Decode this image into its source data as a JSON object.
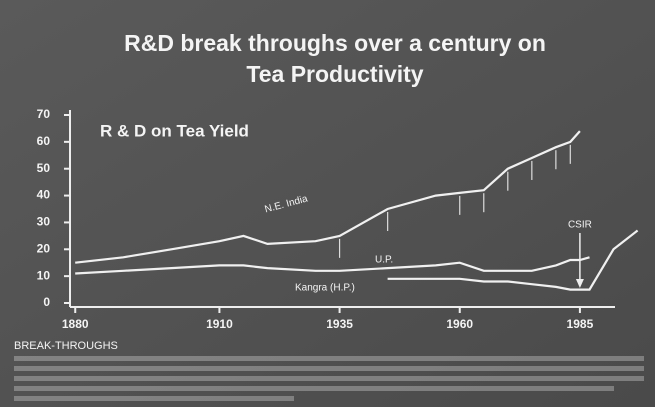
{
  "chart_data": {
    "type": "line",
    "title": [
      "R&D break throughs over a century on",
      "Tea Productivity"
    ],
    "chart_title": "R & D on Tea Yield",
    "footer": "BREAK-THROUGHS",
    "annotation": "CSIR",
    "x": [
      1880,
      1890,
      1900,
      1910,
      1915,
      1920,
      1930,
      1935,
      1945,
      1955,
      1960,
      1965,
      1970,
      1975,
      1980,
      1983,
      1985,
      1987,
      1992,
      1997
    ],
    "series": [
      {
        "name": "N.E. India",
        "color": "#f0f0f0",
        "values": [
          15,
          17,
          20,
          23,
          25,
          22,
          23,
          25,
          35,
          40,
          41,
          42,
          50,
          54,
          58,
          60,
          64,
          null,
          null,
          null
        ]
      },
      {
        "name": "U.P.",
        "color": "#f0f0f0",
        "values": [
          11,
          12,
          13,
          14,
          14,
          13,
          12,
          12,
          13,
          14,
          15,
          12,
          12,
          12,
          14,
          16,
          16,
          17,
          null,
          null
        ]
      },
      {
        "name": "Kangra (H.P.)",
        "color": "#f0f0f0",
        "values": [
          null,
          null,
          null,
          null,
          null,
          null,
          null,
          null,
          9,
          9,
          9,
          8,
          8,
          7,
          6,
          5,
          5,
          5,
          20,
          27
        ]
      }
    ],
    "xlim": [
      1876,
      2000
    ],
    "xticks": [
      1880,
      1910,
      1935,
      1960,
      1985
    ],
    "ylim": [
      0,
      70
    ],
    "yticks": [
      0,
      10,
      20,
      30,
      40,
      50,
      60,
      70
    ]
  }
}
